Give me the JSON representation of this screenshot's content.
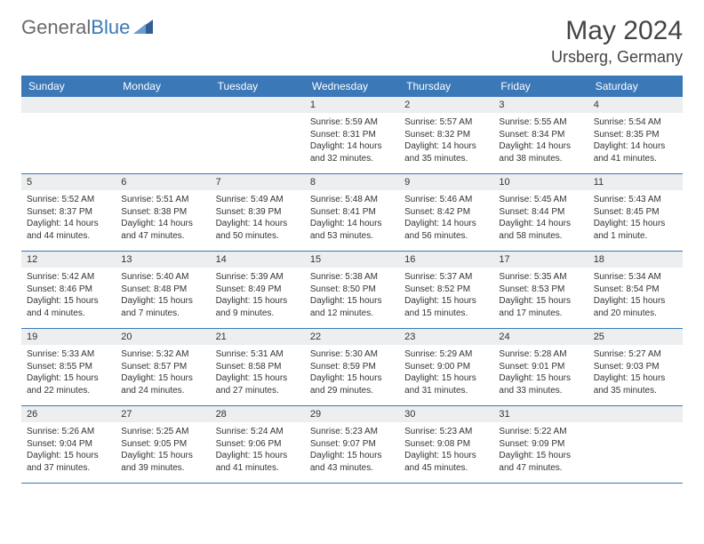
{
  "logo": {
    "general": "General",
    "blue": "Blue"
  },
  "title": "May 2024",
  "location": "Ursberg, Germany",
  "day_names": [
    "Sunday",
    "Monday",
    "Tuesday",
    "Wednesday",
    "Thursday",
    "Friday",
    "Saturday"
  ],
  "colors": {
    "header_bg": "#3a78b8",
    "header_text": "#ffffff",
    "daynum_bg": "#eceef0",
    "text": "#333333",
    "rule": "#3a78b8"
  },
  "fonts": {
    "title_size": 30,
    "location_size": 18,
    "dayname_size": 12,
    "body_size": 10
  },
  "weeks": [
    [
      {
        "num": "",
        "empty": true
      },
      {
        "num": "",
        "empty": true
      },
      {
        "num": "",
        "empty": true
      },
      {
        "num": "1",
        "sunrise": "Sunrise: 5:59 AM",
        "sunset": "Sunset: 8:31 PM",
        "daylight1": "Daylight: 14 hours",
        "daylight2": "and 32 minutes."
      },
      {
        "num": "2",
        "sunrise": "Sunrise: 5:57 AM",
        "sunset": "Sunset: 8:32 PM",
        "daylight1": "Daylight: 14 hours",
        "daylight2": "and 35 minutes."
      },
      {
        "num": "3",
        "sunrise": "Sunrise: 5:55 AM",
        "sunset": "Sunset: 8:34 PM",
        "daylight1": "Daylight: 14 hours",
        "daylight2": "and 38 minutes."
      },
      {
        "num": "4",
        "sunrise": "Sunrise: 5:54 AM",
        "sunset": "Sunset: 8:35 PM",
        "daylight1": "Daylight: 14 hours",
        "daylight2": "and 41 minutes."
      }
    ],
    [
      {
        "num": "5",
        "sunrise": "Sunrise: 5:52 AM",
        "sunset": "Sunset: 8:37 PM",
        "daylight1": "Daylight: 14 hours",
        "daylight2": "and 44 minutes."
      },
      {
        "num": "6",
        "sunrise": "Sunrise: 5:51 AM",
        "sunset": "Sunset: 8:38 PM",
        "daylight1": "Daylight: 14 hours",
        "daylight2": "and 47 minutes."
      },
      {
        "num": "7",
        "sunrise": "Sunrise: 5:49 AM",
        "sunset": "Sunset: 8:39 PM",
        "daylight1": "Daylight: 14 hours",
        "daylight2": "and 50 minutes."
      },
      {
        "num": "8",
        "sunrise": "Sunrise: 5:48 AM",
        "sunset": "Sunset: 8:41 PM",
        "daylight1": "Daylight: 14 hours",
        "daylight2": "and 53 minutes."
      },
      {
        "num": "9",
        "sunrise": "Sunrise: 5:46 AM",
        "sunset": "Sunset: 8:42 PM",
        "daylight1": "Daylight: 14 hours",
        "daylight2": "and 56 minutes."
      },
      {
        "num": "10",
        "sunrise": "Sunrise: 5:45 AM",
        "sunset": "Sunset: 8:44 PM",
        "daylight1": "Daylight: 14 hours",
        "daylight2": "and 58 minutes."
      },
      {
        "num": "11",
        "sunrise": "Sunrise: 5:43 AM",
        "sunset": "Sunset: 8:45 PM",
        "daylight1": "Daylight: 15 hours",
        "daylight2": "and 1 minute."
      }
    ],
    [
      {
        "num": "12",
        "sunrise": "Sunrise: 5:42 AM",
        "sunset": "Sunset: 8:46 PM",
        "daylight1": "Daylight: 15 hours",
        "daylight2": "and 4 minutes."
      },
      {
        "num": "13",
        "sunrise": "Sunrise: 5:40 AM",
        "sunset": "Sunset: 8:48 PM",
        "daylight1": "Daylight: 15 hours",
        "daylight2": "and 7 minutes."
      },
      {
        "num": "14",
        "sunrise": "Sunrise: 5:39 AM",
        "sunset": "Sunset: 8:49 PM",
        "daylight1": "Daylight: 15 hours",
        "daylight2": "and 9 minutes."
      },
      {
        "num": "15",
        "sunrise": "Sunrise: 5:38 AM",
        "sunset": "Sunset: 8:50 PM",
        "daylight1": "Daylight: 15 hours",
        "daylight2": "and 12 minutes."
      },
      {
        "num": "16",
        "sunrise": "Sunrise: 5:37 AM",
        "sunset": "Sunset: 8:52 PM",
        "daylight1": "Daylight: 15 hours",
        "daylight2": "and 15 minutes."
      },
      {
        "num": "17",
        "sunrise": "Sunrise: 5:35 AM",
        "sunset": "Sunset: 8:53 PM",
        "daylight1": "Daylight: 15 hours",
        "daylight2": "and 17 minutes."
      },
      {
        "num": "18",
        "sunrise": "Sunrise: 5:34 AM",
        "sunset": "Sunset: 8:54 PM",
        "daylight1": "Daylight: 15 hours",
        "daylight2": "and 20 minutes."
      }
    ],
    [
      {
        "num": "19",
        "sunrise": "Sunrise: 5:33 AM",
        "sunset": "Sunset: 8:55 PM",
        "daylight1": "Daylight: 15 hours",
        "daylight2": "and 22 minutes."
      },
      {
        "num": "20",
        "sunrise": "Sunrise: 5:32 AM",
        "sunset": "Sunset: 8:57 PM",
        "daylight1": "Daylight: 15 hours",
        "daylight2": "and 24 minutes."
      },
      {
        "num": "21",
        "sunrise": "Sunrise: 5:31 AM",
        "sunset": "Sunset: 8:58 PM",
        "daylight1": "Daylight: 15 hours",
        "daylight2": "and 27 minutes."
      },
      {
        "num": "22",
        "sunrise": "Sunrise: 5:30 AM",
        "sunset": "Sunset: 8:59 PM",
        "daylight1": "Daylight: 15 hours",
        "daylight2": "and 29 minutes."
      },
      {
        "num": "23",
        "sunrise": "Sunrise: 5:29 AM",
        "sunset": "Sunset: 9:00 PM",
        "daylight1": "Daylight: 15 hours",
        "daylight2": "and 31 minutes."
      },
      {
        "num": "24",
        "sunrise": "Sunrise: 5:28 AM",
        "sunset": "Sunset: 9:01 PM",
        "daylight1": "Daylight: 15 hours",
        "daylight2": "and 33 minutes."
      },
      {
        "num": "25",
        "sunrise": "Sunrise: 5:27 AM",
        "sunset": "Sunset: 9:03 PM",
        "daylight1": "Daylight: 15 hours",
        "daylight2": "and 35 minutes."
      }
    ],
    [
      {
        "num": "26",
        "sunrise": "Sunrise: 5:26 AM",
        "sunset": "Sunset: 9:04 PM",
        "daylight1": "Daylight: 15 hours",
        "daylight2": "and 37 minutes."
      },
      {
        "num": "27",
        "sunrise": "Sunrise: 5:25 AM",
        "sunset": "Sunset: 9:05 PM",
        "daylight1": "Daylight: 15 hours",
        "daylight2": "and 39 minutes."
      },
      {
        "num": "28",
        "sunrise": "Sunrise: 5:24 AM",
        "sunset": "Sunset: 9:06 PM",
        "daylight1": "Daylight: 15 hours",
        "daylight2": "and 41 minutes."
      },
      {
        "num": "29",
        "sunrise": "Sunrise: 5:23 AM",
        "sunset": "Sunset: 9:07 PM",
        "daylight1": "Daylight: 15 hours",
        "daylight2": "and 43 minutes."
      },
      {
        "num": "30",
        "sunrise": "Sunrise: 5:23 AM",
        "sunset": "Sunset: 9:08 PM",
        "daylight1": "Daylight: 15 hours",
        "daylight2": "and 45 minutes."
      },
      {
        "num": "31",
        "sunrise": "Sunrise: 5:22 AM",
        "sunset": "Sunset: 9:09 PM",
        "daylight1": "Daylight: 15 hours",
        "daylight2": "and 47 minutes."
      },
      {
        "num": "",
        "empty": true
      }
    ]
  ]
}
